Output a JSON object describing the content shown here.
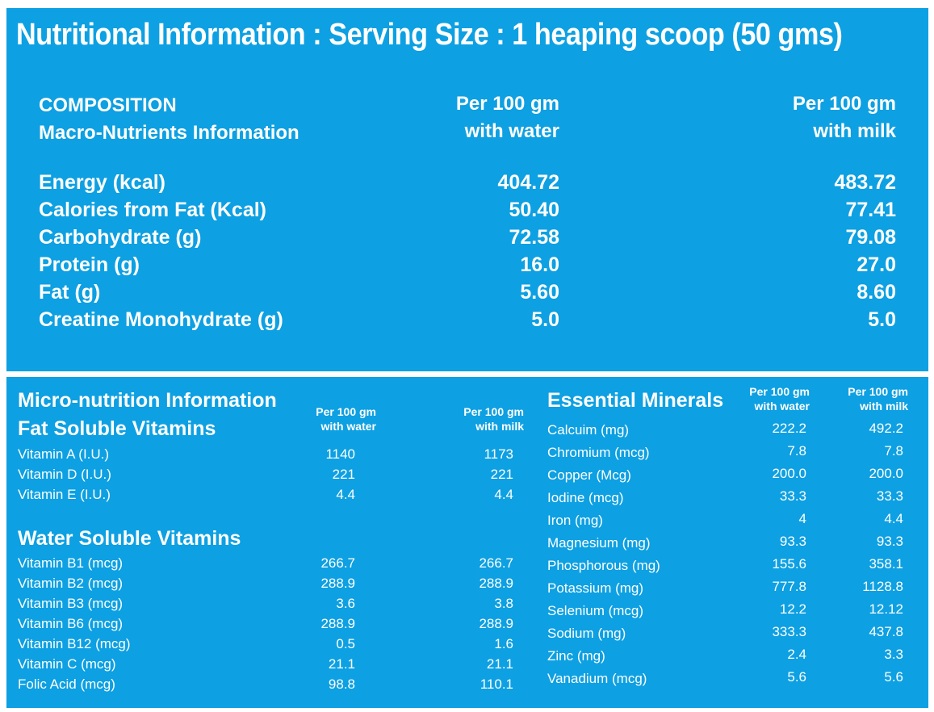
{
  "title": "Nutritional Information : Serving Size : 1 heaping scoop (50 gms)",
  "macro": {
    "composition_label": "COMPOSITION",
    "subtitle": "Macro-Nutrients Information",
    "col_water_1": "Per 100 gm",
    "col_water_2": "with water",
    "col_milk_1": "Per 100 gm",
    "col_milk_2": "with milk",
    "rows": [
      {
        "label": "Energy (kcal)",
        "water": "404.72",
        "milk": "483.72"
      },
      {
        "label": "Calories from Fat (Kcal)",
        "water": "50.40",
        "milk": "77.41"
      },
      {
        "label": "Carbohydrate  (g)",
        "water": "72.58",
        "milk": "79.08"
      },
      {
        "label": "Protein (g)",
        "water": "16.0",
        "milk": "27.0"
      },
      {
        "label": "Fat (g)",
        "water": "5.60",
        "milk": "8.60"
      },
      {
        "label": "Creatine Monohydrate (g)",
        "water": "5.0",
        "milk": "5.0"
      }
    ]
  },
  "micro": {
    "title": "Micro-nutrition Information",
    "fat_title": "Fat Soluble Vitamins",
    "col_water_1": "Per 100 gm",
    "col_water_2": "with water",
    "col_milk_1": "Per 100 gm",
    "col_milk_2": "with milk",
    "fat_rows": [
      {
        "label": "Vitamin A (I.U.)",
        "water": "1140",
        "milk": "1173"
      },
      {
        "label": "Vitamin D (I.U.)",
        "water": "221",
        "milk": "221"
      },
      {
        "label": "Vitamin E (I.U.)",
        "water": "4.4",
        "milk": "4.4"
      }
    ],
    "water_title": "Water Soluble Vitamins",
    "water_rows": [
      {
        "label": "Vitamin B1 (mcg)",
        "water": "266.7",
        "milk": "266.7"
      },
      {
        "label": "Vitamin B2 (mcg)",
        "water": "288.9",
        "milk": "288.9"
      },
      {
        "label": "Vitamin B3 (mcg)",
        "water": "3.6",
        "milk": "3.8"
      },
      {
        "label": "Vitamin B6 (mcg)",
        "water": "288.9",
        "milk": "288.9"
      },
      {
        "label": "Vitamin B12 (mcg)",
        "water": "0.5",
        "milk": "1.6"
      },
      {
        "label": "Vitamin C (mcg)",
        "water": "21.1",
        "milk": "21.1"
      },
      {
        "label": "Folic Acid (mcg)",
        "water": "98.8",
        "milk": "110.1"
      }
    ]
  },
  "minerals": {
    "title": "Essential Minerals",
    "col_water_1": "Per 100 gm",
    "col_water_2": "with water",
    "col_milk_1": "Per 100 gm",
    "col_milk_2": "with milk",
    "rows": [
      {
        "label": "Calcuim (mg)",
        "water": "222.2",
        "milk": "492.2"
      },
      {
        "label": "Chromium (mcg)",
        "water": "7.8",
        "milk": "7.8"
      },
      {
        "label": "Copper (Mcg)",
        "water": "200.0",
        "milk": "200.0"
      },
      {
        "label": "Iodine (mcg)",
        "water": "33.3",
        "milk": "33.3"
      },
      {
        "label": "Iron (mg)",
        "water": "4",
        "milk": "4.4"
      },
      {
        "label": "Magnesium (mg)",
        "water": "93.3",
        "milk": "93.3"
      },
      {
        "label": "Phosphorous (mg)",
        "water": "155.6",
        "milk": "358.1"
      },
      {
        "label": "Potassium (mg)",
        "water": "777.8",
        "milk": "1128.8"
      },
      {
        "label": "Selenium (mcg)",
        "water": "12.2",
        "milk": "12.12"
      },
      {
        "label": "Sodium (mg)",
        "water": "333.3",
        "milk": "437.8"
      },
      {
        "label": "Zinc (mg)",
        "water": "2.4",
        "milk": "3.3"
      },
      {
        "label": "Vanadium (mcg)",
        "water": "5.6",
        "milk": "5.6"
      }
    ]
  }
}
